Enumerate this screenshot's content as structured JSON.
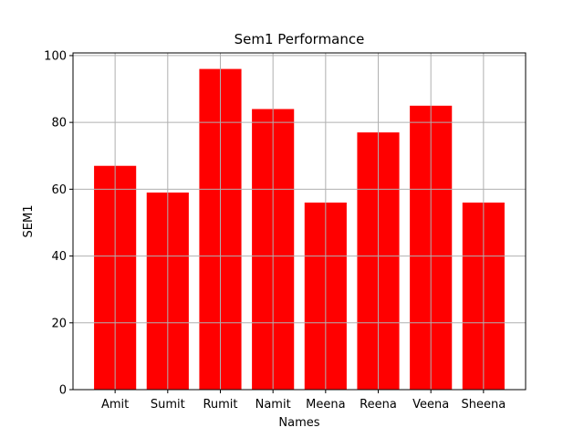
{
  "chart_data": {
    "type": "bar",
    "title": "Sem1 Performance",
    "xlabel": "Names",
    "ylabel": "SEM1",
    "categories": [
      "Amit",
      "Sumit",
      "Rumit",
      "Namit",
      "Meena",
      "Reena",
      "Veena",
      "Sheena"
    ],
    "values": [
      67,
      59,
      96,
      84,
      56,
      77,
      85,
      56
    ],
    "ylim": [
      0,
      100.8
    ],
    "yticks": [
      0,
      20,
      40,
      60,
      80,
      100
    ],
    "grid": true,
    "bar_color": "#ff0000",
    "grid_color": "#b0b0b0"
  }
}
